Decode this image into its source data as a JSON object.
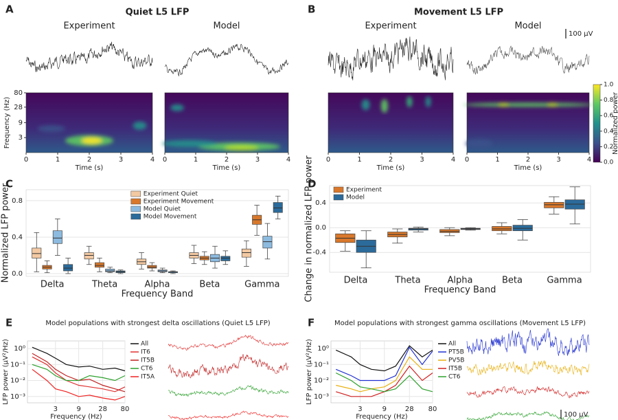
{
  "panel_labels": [
    "A",
    "B",
    "C",
    "D",
    "E",
    "F"
  ],
  "scale_bar": "100 μV",
  "chart_data": [
    {
      "type": "spectrogram_pair",
      "title": "Quiet L5 LFP",
      "panels": [
        "Experiment",
        "Model"
      ],
      "xlabel": "Time (s)",
      "ylabel": "Frequency (Hz)",
      "xlim": [
        0,
        4
      ],
      "xticks": [
        0,
        1,
        2,
        3,
        4
      ],
      "ylim": [
        1,
        80
      ],
      "yticks": [
        3,
        9,
        28,
        80
      ],
      "log_y": true
    },
    {
      "type": "spectrogram_pair",
      "title": "Movement L5 LFP",
      "panels": [
        "Experiment",
        "Model"
      ],
      "xlabel": "Time (s)",
      "xlim": [
        0,
        4
      ],
      "xticks": [
        0,
        1,
        2,
        3,
        4
      ],
      "ylim": [
        1,
        80
      ],
      "log_y": true,
      "colorbar": {
        "label": "Normalized power",
        "lim": [
          0,
          1
        ],
        "ticks": [
          {
            "value": 0,
            "label": "0.0"
          },
          {
            "value": 0.2,
            "label": "0.2"
          },
          {
            "value": 0.4,
            "label": "0.4"
          },
          {
            "value": 0.6,
            "label": "0.6"
          },
          {
            "value": 0.8,
            "label": "0.8"
          },
          {
            "value": 1,
            "label": "1.0"
          }
        ]
      }
    },
    {
      "type": "box",
      "ylabel": "Normalized LFP power",
      "xlabel": "Frequency Band",
      "categories": [
        "Delta",
        "Theta",
        "Alpha",
        "Beta",
        "Gamma"
      ],
      "ylim": [
        -0.03,
        0.92
      ],
      "yticks": [
        {
          "value": 0,
          "label": "0.0"
        },
        0.4,
        0.8
      ],
      "grid": true,
      "legend": "top-right",
      "series": [
        {
          "name": "Experiment Quiet",
          "color": "#f3c9a2",
          "low": [
            0.02,
            0.1,
            0.05,
            0.11,
            0.08
          ],
          "q1": [
            0.17,
            0.16,
            0.1,
            0.17,
            0.18
          ],
          "median": [
            0.22,
            0.2,
            0.13,
            0.2,
            0.23
          ],
          "q3": [
            0.28,
            0.23,
            0.16,
            0.23,
            0.27
          ],
          "high": [
            0.45,
            0.3,
            0.23,
            0.31,
            0.36
          ]
        },
        {
          "name": "Experiment Movement",
          "color": "#d9782b",
          "low": [
            0.01,
            0.02,
            0.03,
            0.1,
            0.42
          ],
          "q1": [
            0.05,
            0.07,
            0.06,
            0.15,
            0.54
          ],
          "median": [
            0.07,
            0.09,
            0.07,
            0.17,
            0.59
          ],
          "q3": [
            0.09,
            0.12,
            0.09,
            0.19,
            0.64
          ],
          "high": [
            0.14,
            0.17,
            0.12,
            0.24,
            0.75
          ]
        },
        {
          "name": "Model Quiet",
          "color": "#8dbbe0",
          "low": [
            0.2,
            0.01,
            0.01,
            0.06,
            0.16
          ],
          "q1": [
            0.33,
            0.02,
            0.02,
            0.13,
            0.28
          ],
          "median": [
            0.39,
            0.03,
            0.03,
            0.17,
            0.35
          ],
          "q3": [
            0.47,
            0.05,
            0.04,
            0.21,
            0.41
          ],
          "high": [
            0.6,
            0.07,
            0.06,
            0.3,
            0.55
          ]
        },
        {
          "name": "Model Movement",
          "color": "#2b6b9b",
          "low": [
            0,
            0,
            0,
            0.1,
            0.6
          ],
          "q1": [
            0.03,
            0.01,
            0.01,
            0.14,
            0.67
          ],
          "median": [
            0.06,
            0.02,
            0.02,
            0.17,
            0.72
          ],
          "q3": [
            0.1,
            0.03,
            0.02,
            0.19,
            0.78
          ],
          "high": [
            0.17,
            0.04,
            0.03,
            0.25,
            0.85
          ]
        }
      ]
    },
    {
      "type": "box",
      "ylabel": "Change in normalized LFP power",
      "xlabel": "Frequency Band",
      "categories": [
        "Delta",
        "Theta",
        "Alpha",
        "Beta",
        "Gamma"
      ],
      "ylim": [
        -0.72,
        0.68
      ],
      "yticks": [
        -0.4,
        {
          "value": 0,
          "label": "0.0"
        },
        0.4
      ],
      "grid": true,
      "legend": "top-left",
      "series": [
        {
          "name": "Experiment",
          "color": "#d9782b",
          "low": [
            -0.38,
            -0.25,
            -0.13,
            -0.1,
            0.22
          ],
          "q1": [
            -0.24,
            -0.15,
            -0.08,
            -0.05,
            0.32
          ],
          "median": [
            -0.17,
            -0.11,
            -0.06,
            -0.02,
            0.37
          ],
          "q3": [
            -0.1,
            -0.07,
            -0.03,
            0.02,
            0.41
          ],
          "high": [
            -0.05,
            -0.02,
            0,
            0.08,
            0.5
          ]
        },
        {
          "name": "Model",
          "color": "#2b6b9b",
          "low": [
            -0.65,
            -0.07,
            -0.04,
            -0.2,
            0.06
          ],
          "q1": [
            -0.4,
            -0.04,
            -0.03,
            -0.05,
            0.3
          ],
          "median": [
            -0.3,
            -0.02,
            -0.02,
            -0.01,
            0.38
          ],
          "q3": [
            -0.2,
            -0.01,
            -0.01,
            0.04,
            0.45
          ],
          "high": [
            -0.05,
            0.01,
            0,
            0.13,
            0.66
          ]
        }
      ]
    },
    {
      "type": "line",
      "title": "Model populations with strongest delta oscillations (Quiet L5 LFP)",
      "xlabel": "Frequency (Hz)",
      "ylabel": "LFP power (μV²/Hz)",
      "log_x": true,
      "log_y": true,
      "xlim": [
        0.8,
        80
      ],
      "xticks": [
        3,
        9,
        28,
        80
      ],
      "ylim": [
        0.0004,
        3
      ],
      "yticks": [
        {
          "value": 0.001,
          "label": "10⁻³"
        },
        {
          "value": 0.01,
          "label": "10⁻²"
        },
        {
          "value": 0.1,
          "label": "10⁻¹"
        },
        {
          "value": 1,
          "label": "10⁰"
        }
      ],
      "grid": true,
      "legend": "right",
      "x": [
        1,
        2,
        3,
        5,
        9,
        15,
        28,
        50,
        80
      ],
      "series": [
        {
          "name": "All",
          "color": "#111111",
          "values": [
            1.2,
            0.5,
            0.25,
            0.1,
            0.07,
            0.08,
            0.05,
            0.06,
            0.04
          ]
        },
        {
          "name": "IT6",
          "color": "#e03030",
          "values": [
            0.3,
            0.1,
            0.03,
            0.01,
            0.005,
            0.004,
            0.003,
            0.002,
            0.004
          ]
        },
        {
          "name": "IT5B",
          "color": "#c02020",
          "values": [
            0.5,
            0.15,
            0.05,
            0.02,
            0.01,
            0.012,
            0.005,
            0.003,
            0.002
          ]
        },
        {
          "name": "CT6",
          "color": "#2ca02c",
          "values": [
            0.1,
            0.05,
            0.02,
            0.01,
            0.01,
            0.02,
            0.015,
            0.01,
            0.02
          ]
        },
        {
          "name": "IT5A",
          "color": "#f02020",
          "values": [
            0.05,
            0.01,
            0.003,
            0.002,
            0.001,
            0.0012,
            0.0008,
            0.0006,
            0.001
          ]
        }
      ]
    },
    {
      "type": "line",
      "title": "Model populations with strongest gamma oscillations (Movement L5 LFP)",
      "xlabel": "Frequency (Hz)",
      "ylabel": "LFP power (μV²/Hz)",
      "log_x": true,
      "log_y": true,
      "xlim": [
        0.8,
        80
      ],
      "xticks": [
        3,
        9,
        28,
        80
      ],
      "ylim": [
        0.0004,
        3
      ],
      "yticks": [
        {
          "value": 0.001,
          "label": "10⁻³"
        },
        {
          "value": 0.01,
          "label": "10⁻²"
        },
        {
          "value": 0.1,
          "label": "10⁻¹"
        },
        {
          "value": 1,
          "label": "10⁰"
        }
      ],
      "grid": true,
      "legend": "right",
      "x": [
        1,
        2,
        3,
        5,
        9,
        15,
        28,
        50,
        80
      ],
      "series": [
        {
          "name": "All",
          "color": "#111111",
          "values": [
            0.8,
            0.3,
            0.1,
            0.05,
            0.04,
            0.08,
            1.5,
            0.3,
            0.8
          ]
        },
        {
          "name": "PT5B",
          "color": "#2030d0",
          "values": [
            0.05,
            0.02,
            0.01,
            0.01,
            0.01,
            0.02,
            1.2,
            0.1,
            0.7
          ]
        },
        {
          "name": "PV5B",
          "color": "#e8b010",
          "values": [
            0.005,
            0.003,
            0.002,
            0.003,
            0.004,
            0.01,
            0.3,
            0.05,
            0.05
          ]
        },
        {
          "name": "IT5B",
          "color": "#d02020",
          "values": [
            0.002,
            0.001,
            0.001,
            0.001,
            0.002,
            0.005,
            0.08,
            0.01,
            0.03
          ]
        },
        {
          "name": "CT6",
          "color": "#2ca02c",
          "values": [
            0.03,
            0.01,
            0.004,
            0.003,
            0.002,
            0.003,
            0.02,
            0.003,
            0.002
          ]
        }
      ]
    }
  ]
}
